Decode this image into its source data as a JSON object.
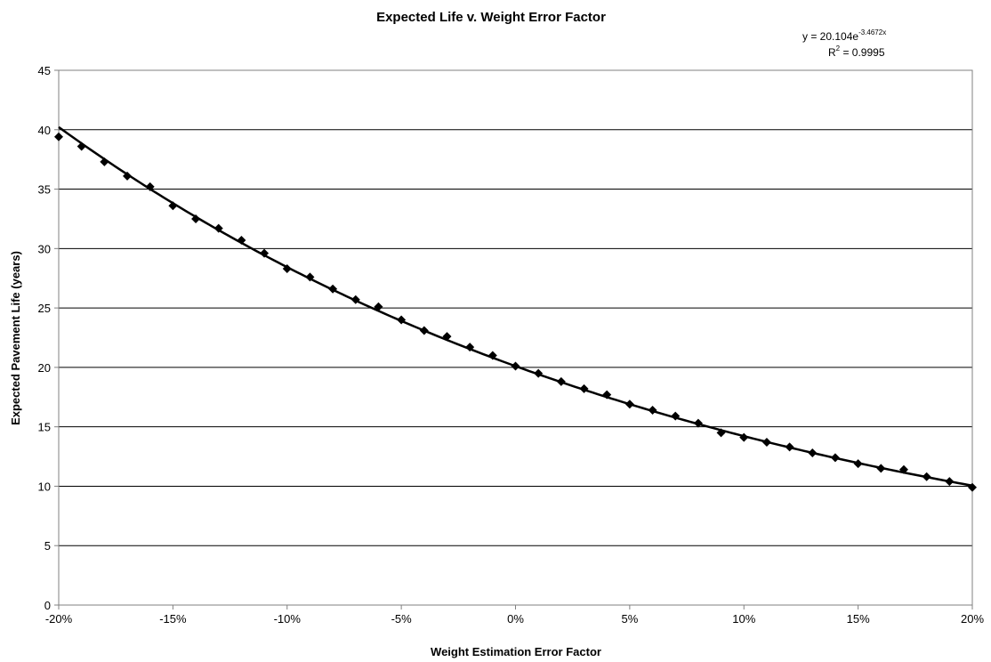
{
  "chart_data": {
    "type": "scatter",
    "title": "Expected Life v. Weight Error Factor",
    "xlabel": "Weight Estimation Error Factor",
    "ylabel": "Expected Pavement Life (years)",
    "xlim": [
      -0.2,
      0.2
    ],
    "ylim": [
      0,
      45
    ],
    "x_ticks": [
      -0.2,
      -0.15,
      -0.1,
      -0.05,
      0,
      0.05,
      0.1,
      0.15,
      0.2
    ],
    "x_tick_labels": [
      "-20%",
      "-15%",
      "-10%",
      "-5%",
      "0%",
      "5%",
      "10%",
      "15%",
      "20%"
    ],
    "y_ticks": [
      0,
      5,
      10,
      15,
      20,
      25,
      30,
      35,
      40,
      45
    ],
    "y_tick_labels": [
      "0",
      "5",
      "10",
      "15",
      "20",
      "25",
      "30",
      "35",
      "40",
      "45"
    ],
    "grid": "horizontal",
    "legend": "none",
    "series": [
      {
        "marker": "diamond",
        "color": "#000000",
        "x": [
          -0.2,
          -0.19,
          -0.18,
          -0.17,
          -0.16,
          -0.15,
          -0.14,
          -0.13,
          -0.12,
          -0.11,
          -0.1,
          -0.09,
          -0.08,
          -0.07,
          -0.06,
          -0.05,
          -0.04,
          -0.03,
          -0.02,
          -0.01,
          0.0,
          0.01,
          0.02,
          0.03,
          0.04,
          0.05,
          0.06,
          0.07,
          0.08,
          0.09,
          0.1,
          0.11,
          0.12,
          0.13,
          0.14,
          0.15,
          0.16,
          0.17,
          0.18,
          0.19,
          0.2
        ],
        "y": [
          39.4,
          38.6,
          37.3,
          36.1,
          35.2,
          33.6,
          32.5,
          31.7,
          30.7,
          29.6,
          28.3,
          27.6,
          26.6,
          25.7,
          25.1,
          24.0,
          23.1,
          22.6,
          21.7,
          21.0,
          20.1,
          19.5,
          18.8,
          18.2,
          17.7,
          16.9,
          16.4,
          15.9,
          15.3,
          14.5,
          14.1,
          13.7,
          13.3,
          12.8,
          12.4,
          11.9,
          11.5,
          11.4,
          10.8,
          10.4,
          9.9
        ]
      }
    ],
    "trendline": {
      "type": "exponential",
      "a": 20.104,
      "b": -3.4672,
      "equation_prefix": "y = 20.104e",
      "equation_exponent": "-3.4672x",
      "r2_label": "R",
      "r2_exp": "2",
      "r2_value": " = 0.9995"
    }
  }
}
